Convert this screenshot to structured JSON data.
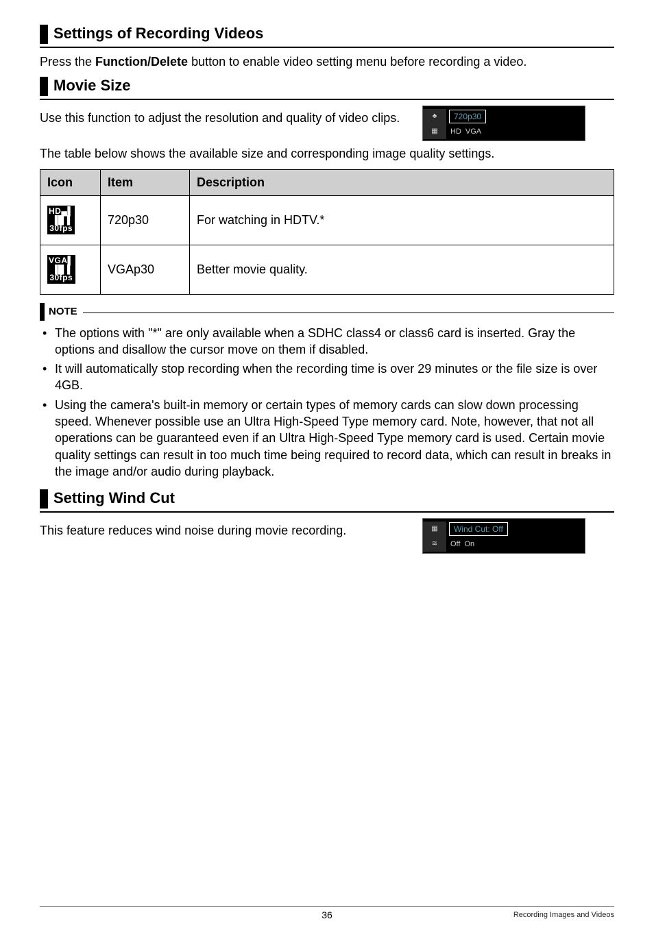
{
  "sections": {
    "recording": {
      "title": "Settings of Recording Videos",
      "body_prefix": "Press the ",
      "body_bold": "Function/Delete",
      "body_suffix": " button to enable video setting menu before recording a video."
    },
    "movieSize": {
      "title": "Movie Size",
      "body": "Use this function to adjust the resolution and quality of video clips.",
      "tableIntro": "The table below shows the available size and corresponding image quality settings.",
      "screenshot": {
        "label": "720p30",
        "opt1": "HD",
        "opt2": "VGA",
        "leftIcon": "♣"
      },
      "table": {
        "headers": {
          "icon": "Icon",
          "item": "Item",
          "desc": "Description"
        },
        "rows": [
          {
            "iconText": "HD▄▌\n▐█▐\n30fps",
            "item": "720p30",
            "desc": "For watching in HDTV.*"
          },
          {
            "iconText": "VGA▌\n▐█▐\n30fps",
            "item": "VGAp30",
            "desc": "Better movie quality."
          }
        ]
      }
    },
    "note": {
      "label": "NOTE",
      "items": [
        "The options with \"*\" are only available when a SDHC class4 or class6 card is inserted. Gray the options and disallow the cursor move on them if disabled.",
        "It will automatically stop recording when the recording time is over 29 minutes or the file size is over 4GB.",
        "Using the camera's built-in memory or certain types of memory cards can slow down processing speed. Whenever possible use an Ultra High-Speed Type memory card. Note, however, that not all operations can be guaranteed even if an Ultra High-Speed Type memory card is used. Certain movie quality settings can result in too much time being required to record data, which can result in breaks in the image and/or audio during playback."
      ]
    },
    "windCut": {
      "title": "Setting Wind Cut",
      "body": "This feature reduces wind noise during movie recording.",
      "screenshot": {
        "label": "Wind Cut: Off",
        "opt1": "Off",
        "opt2": "On",
        "leftIcon": "≋"
      }
    }
  },
  "footer": {
    "page": "36",
    "crumb": "Recording Images and Videos"
  }
}
